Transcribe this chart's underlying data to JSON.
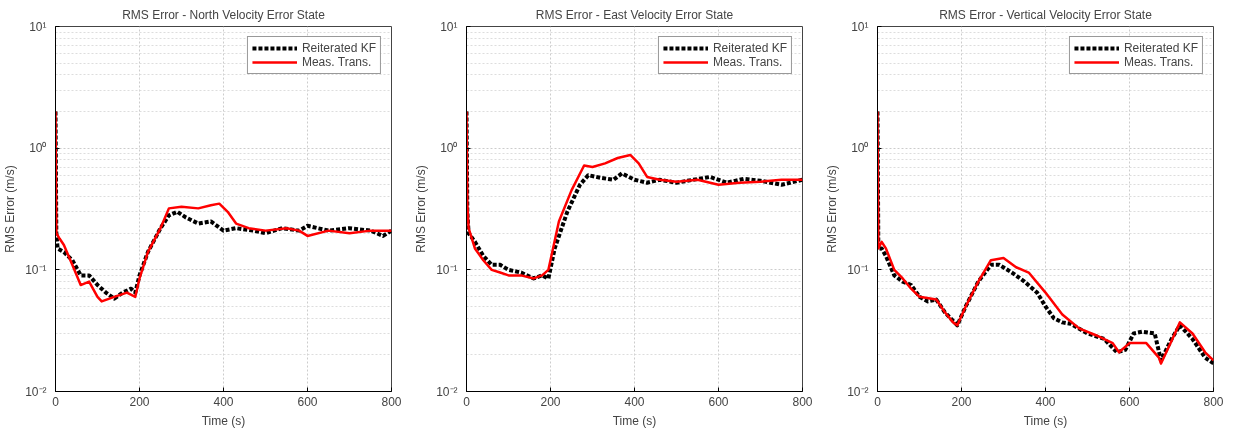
{
  "chart_data": [
    {
      "type": "line",
      "title": "RMS Error - North Velocity Error State",
      "xlabel": "Time (s)",
      "ylabel": "RMS Error (m/s)",
      "log": "y",
      "grid": true,
      "legend": "top right",
      "xlim": [
        0,
        800
      ],
      "xticks": [
        0,
        200,
        400,
        600,
        800
      ],
      "ylim": [
        0.01,
        10
      ],
      "yticks": [
        {
          "value": 0.01,
          "label": "10⁻²"
        },
        {
          "value": 0.1,
          "label": "10⁻¹"
        },
        {
          "value": 1,
          "label": "10⁰"
        },
        {
          "value": 10,
          "label": "10¹"
        }
      ],
      "series": [
        {
          "name": "Reiterated KF",
          "color": "#000000",
          "line_style": "dashed",
          "x": [
            0,
            2,
            5,
            20,
            40,
            60,
            80,
            100,
            120,
            140,
            160,
            180,
            190,
            200,
            220,
            250,
            270,
            290,
            310,
            340,
            370,
            400,
            430,
            470,
            500,
            540,
            580,
            600,
            650,
            700,
            750,
            780,
            800
          ],
          "values": [
            2.0,
            0.2,
            0.15,
            0.14,
            0.12,
            0.09,
            0.09,
            0.075,
            0.065,
            0.058,
            0.065,
            0.07,
            0.065,
            0.09,
            0.14,
            0.22,
            0.28,
            0.3,
            0.27,
            0.24,
            0.25,
            0.21,
            0.22,
            0.21,
            0.2,
            0.22,
            0.21,
            0.23,
            0.21,
            0.22,
            0.21,
            0.19,
            0.21
          ]
        },
        {
          "name": "Meas. Trans.",
          "color": "#ff0000",
          "line_style": "solid",
          "x": [
            0,
            2,
            10,
            20,
            40,
            60,
            80,
            100,
            110,
            140,
            170,
            190,
            200,
            220,
            250,
            270,
            300,
            340,
            370,
            390,
            410,
            430,
            460,
            500,
            550,
            580,
            600,
            650,
            700,
            750,
            800
          ],
          "values": [
            2.0,
            0.2,
            0.18,
            0.16,
            0.11,
            0.075,
            0.08,
            0.06,
            0.055,
            0.06,
            0.065,
            0.06,
            0.085,
            0.14,
            0.22,
            0.32,
            0.33,
            0.32,
            0.34,
            0.35,
            0.3,
            0.24,
            0.22,
            0.21,
            0.22,
            0.21,
            0.19,
            0.21,
            0.2,
            0.21,
            0.21
          ]
        }
      ]
    },
    {
      "type": "line",
      "title": "RMS Error - East Velocity Error State",
      "xlabel": "Time (s)",
      "ylabel": "RMS Error (m/s)",
      "log": "y",
      "grid": true,
      "legend": "top right",
      "xlim": [
        0,
        800
      ],
      "xticks": [
        0,
        200,
        400,
        600,
        800
      ],
      "ylim": [
        0.01,
        10
      ],
      "yticks": [
        {
          "value": 0.01,
          "label": "10⁻²"
        },
        {
          "value": 0.1,
          "label": "10⁻¹"
        },
        {
          "value": 1,
          "label": "10⁰"
        },
        {
          "value": 10,
          "label": "10¹"
        }
      ],
      "series": [
        {
          "name": "Reiterated KF",
          "color": "#000000",
          "line_style": "dashed",
          "x": [
            0,
            2,
            5,
            20,
            40,
            60,
            80,
            100,
            130,
            160,
            180,
            195,
            210,
            240,
            270,
            290,
            320,
            350,
            370,
            400,
            430,
            460,
            500,
            540,
            580,
            620,
            660,
            700,
            750,
            800
          ],
          "values": [
            2.0,
            0.3,
            0.2,
            0.17,
            0.13,
            0.11,
            0.11,
            0.1,
            0.095,
            0.085,
            0.09,
            0.085,
            0.15,
            0.3,
            0.5,
            0.6,
            0.57,
            0.55,
            0.62,
            0.55,
            0.52,
            0.55,
            0.52,
            0.55,
            0.58,
            0.52,
            0.56,
            0.54,
            0.5,
            0.55
          ]
        },
        {
          "name": "Meas. Trans.",
          "color": "#ff0000",
          "line_style": "solid",
          "x": [
            0,
            2,
            5,
            20,
            40,
            60,
            80,
            100,
            130,
            160,
            180,
            195,
            220,
            250,
            280,
            300,
            330,
            360,
            390,
            410,
            430,
            460,
            500,
            550,
            600,
            650,
            700,
            750,
            800
          ],
          "values": [
            2.0,
            0.35,
            0.22,
            0.15,
            0.12,
            0.1,
            0.095,
            0.09,
            0.09,
            0.085,
            0.09,
            0.1,
            0.25,
            0.45,
            0.72,
            0.7,
            0.75,
            0.83,
            0.88,
            0.75,
            0.58,
            0.55,
            0.53,
            0.55,
            0.5,
            0.52,
            0.53,
            0.55,
            0.55
          ]
        }
      ]
    },
    {
      "type": "line",
      "title": "RMS Error - Vertical Velocity Error State",
      "xlabel": "Time (s)",
      "ylabel": "RMS Error (m/s)",
      "log": "y",
      "grid": true,
      "legend": "top right",
      "xlim": [
        0,
        800
      ],
      "xticks": [
        0,
        200,
        400,
        600,
        800
      ],
      "ylim": [
        0.01,
        10
      ],
      "yticks": [
        {
          "value": 0.01,
          "label": "10⁻²"
        },
        {
          "value": 0.1,
          "label": "10⁻¹"
        },
        {
          "value": 1,
          "label": "10⁰"
        },
        {
          "value": 10,
          "label": "10¹"
        }
      ],
      "series": [
        {
          "name": "Reiterated KF",
          "color": "#000000",
          "line_style": "dashed",
          "x": [
            0,
            2,
            10,
            20,
            40,
            60,
            80,
            100,
            120,
            140,
            160,
            180,
            190,
            210,
            240,
            270,
            290,
            320,
            350,
            380,
            400,
            420,
            440,
            460,
            500,
            540,
            570,
            590,
            610,
            630,
            660,
            675,
            700,
            720,
            750,
            780,
            800
          ],
          "values": [
            2.0,
            0.15,
            0.15,
            0.13,
            0.09,
            0.08,
            0.075,
            0.06,
            0.055,
            0.057,
            0.045,
            0.038,
            0.035,
            0.05,
            0.08,
            0.11,
            0.11,
            0.095,
            0.08,
            0.065,
            0.05,
            0.04,
            0.037,
            0.036,
            0.03,
            0.027,
            0.021,
            0.022,
            0.03,
            0.031,
            0.03,
            0.018,
            0.027,
            0.035,
            0.027,
            0.019,
            0.017
          ]
        },
        {
          "name": "Meas. Trans.",
          "color": "#ff0000",
          "line_style": "solid",
          "x": [
            0,
            2,
            10,
            20,
            40,
            60,
            80,
            100,
            140,
            160,
            180,
            190,
            210,
            240,
            270,
            300,
            330,
            360,
            400,
            440,
            480,
            520,
            560,
            575,
            600,
            640,
            670,
            675,
            700,
            720,
            750,
            780,
            800
          ],
          "values": [
            2.0,
            0.15,
            0.17,
            0.15,
            0.1,
            0.085,
            0.07,
            0.06,
            0.057,
            0.045,
            0.037,
            0.035,
            0.05,
            0.08,
            0.12,
            0.125,
            0.105,
            0.095,
            0.065,
            0.043,
            0.033,
            0.029,
            0.025,
            0.021,
            0.025,
            0.025,
            0.019,
            0.017,
            0.026,
            0.037,
            0.03,
            0.021,
            0.018
          ]
        }
      ]
    }
  ]
}
